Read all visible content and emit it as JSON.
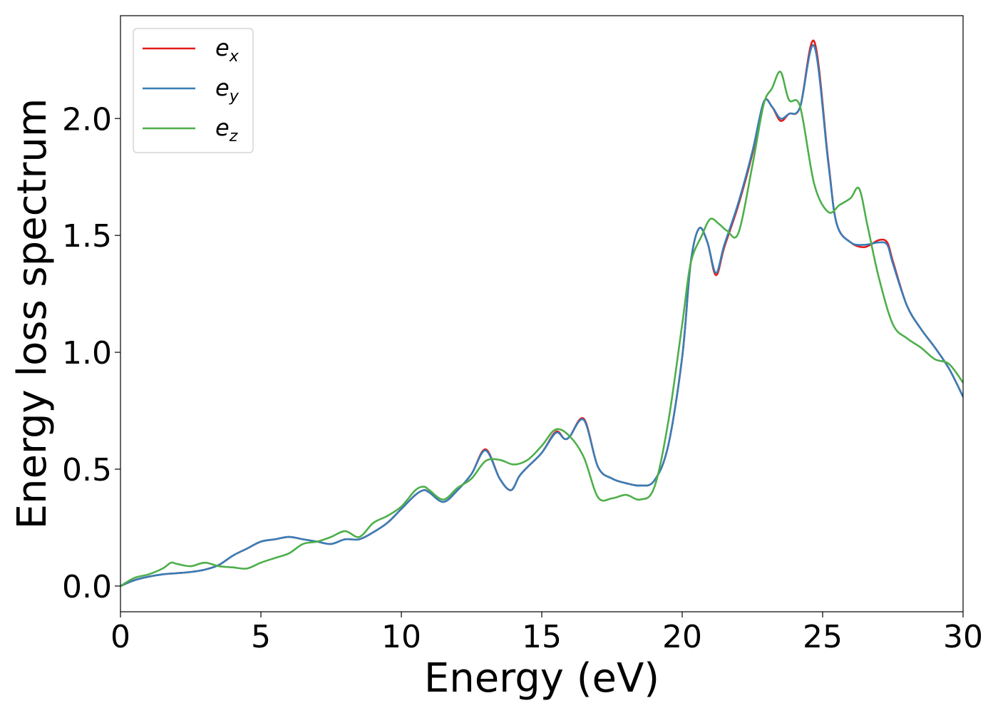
{
  "chart_data": {
    "type": "line",
    "xlabel": "Energy (eV)",
    "ylabel": "Energy loss spectrum",
    "xlim": [
      0,
      30
    ],
    "ylim": [
      -0.11,
      2.44
    ],
    "xticks": [
      0,
      5,
      10,
      15,
      20,
      25,
      30
    ],
    "xtick_labels": [
      "0",
      "5",
      "10",
      "15",
      "20",
      "25",
      "30"
    ],
    "yticks": [
      0.0,
      0.5,
      1.0,
      1.5,
      2.0
    ],
    "ytick_labels": [
      "0.0",
      "0.5",
      "1.0",
      "1.5",
      "2.0"
    ],
    "grid": false,
    "legend_position": "top-left",
    "series": [
      {
        "name": "e_x",
        "legend_base": "e",
        "legend_sub": "x",
        "color": "#e41a1c",
        "x": [
          0,
          0.5,
          1,
          1.5,
          2,
          2.5,
          3,
          3.5,
          4,
          4.5,
          5,
          5.5,
          6,
          6.5,
          7,
          7.5,
          8,
          8.5,
          9,
          9.5,
          10,
          10.5,
          10.8,
          11,
          11.5,
          12,
          12.5,
          13,
          13.5,
          13.9,
          14.2,
          14.5,
          15,
          15.5,
          15.8,
          16,
          16.5,
          17,
          17.5,
          18,
          18.5,
          19,
          19.5,
          20,
          20.3,
          20.6,
          20.9,
          21.2,
          21.5,
          22,
          22.5,
          22.9,
          23.2,
          23.5,
          23.8,
          24.2,
          24.7,
          25.2,
          25.5,
          26,
          26.5,
          27,
          27.3,
          27.5,
          28,
          28.5,
          29,
          29.5,
          30
        ],
        "y": [
          0.0,
          0.025,
          0.04,
          0.05,
          0.055,
          0.06,
          0.07,
          0.09,
          0.13,
          0.16,
          0.19,
          0.2,
          0.21,
          0.2,
          0.19,
          0.18,
          0.2,
          0.2,
          0.23,
          0.27,
          0.33,
          0.39,
          0.41,
          0.4,
          0.36,
          0.41,
          0.48,
          0.585,
          0.46,
          0.41,
          0.47,
          0.51,
          0.57,
          0.66,
          0.63,
          0.64,
          0.715,
          0.51,
          0.46,
          0.44,
          0.43,
          0.45,
          0.6,
          0.98,
          1.38,
          1.53,
          1.47,
          1.33,
          1.45,
          1.63,
          1.85,
          2.07,
          2.05,
          1.99,
          2.02,
          2.05,
          2.33,
          1.82,
          1.55,
          1.47,
          1.45,
          1.48,
          1.47,
          1.39,
          1.2,
          1.1,
          1.02,
          0.93,
          0.81
        ]
      },
      {
        "name": "e_y",
        "legend_base": "e",
        "legend_sub": "y",
        "color": "#377eb8",
        "x": [
          0,
          0.5,
          1,
          1.5,
          2,
          2.5,
          3,
          3.5,
          4,
          4.5,
          5,
          5.5,
          6,
          6.5,
          7,
          7.5,
          8,
          8.5,
          9,
          9.5,
          10,
          10.5,
          10.8,
          11,
          11.5,
          12,
          12.5,
          13,
          13.5,
          13.9,
          14.2,
          14.5,
          15,
          15.5,
          15.8,
          16,
          16.5,
          17,
          17.5,
          18,
          18.5,
          19,
          19.5,
          20,
          20.3,
          20.6,
          20.9,
          21.2,
          21.5,
          22,
          22.5,
          22.9,
          23.2,
          23.5,
          23.8,
          24.2,
          24.7,
          25.2,
          25.5,
          26,
          26.5,
          27,
          27.3,
          27.5,
          28,
          28.5,
          29,
          29.5,
          30
        ],
        "y": [
          0.0,
          0.025,
          0.04,
          0.05,
          0.055,
          0.06,
          0.07,
          0.09,
          0.13,
          0.16,
          0.19,
          0.2,
          0.21,
          0.2,
          0.19,
          0.18,
          0.2,
          0.2,
          0.23,
          0.27,
          0.33,
          0.39,
          0.41,
          0.4,
          0.36,
          0.41,
          0.48,
          0.58,
          0.46,
          0.41,
          0.47,
          0.51,
          0.57,
          0.655,
          0.63,
          0.64,
          0.71,
          0.51,
          0.46,
          0.44,
          0.43,
          0.45,
          0.6,
          0.98,
          1.38,
          1.53,
          1.47,
          1.34,
          1.46,
          1.64,
          1.86,
          2.07,
          2.05,
          2.0,
          2.02,
          2.05,
          2.31,
          1.81,
          1.55,
          1.47,
          1.46,
          1.47,
          1.46,
          1.38,
          1.2,
          1.1,
          1.02,
          0.93,
          0.81
        ]
      },
      {
        "name": "e_z",
        "legend_base": "e",
        "legend_sub": "z",
        "color": "#4daf4a",
        "x": [
          0,
          0.5,
          1,
          1.5,
          1.8,
          2,
          2.5,
          3,
          3.5,
          4,
          4.5,
          5,
          5.5,
          6,
          6.5,
          7,
          7.5,
          8,
          8.5,
          9,
          9.5,
          10,
          10.5,
          10.8,
          11,
          11.5,
          12,
          12.5,
          13,
          13.5,
          14,
          14.5,
          15,
          15.5,
          16,
          16.5,
          17,
          17.5,
          18,
          18.5,
          19,
          19.5,
          20,
          20.3,
          20.7,
          21,
          21.3,
          21.6,
          22,
          22.5,
          22.9,
          23.2,
          23.5,
          23.8,
          24.2,
          24.7,
          25.2,
          25.6,
          26,
          26.3,
          26.6,
          27,
          27.5,
          28,
          28.5,
          29,
          29.5,
          30
        ],
        "y": [
          0.0,
          0.035,
          0.05,
          0.075,
          0.1,
          0.095,
          0.085,
          0.1,
          0.085,
          0.08,
          0.075,
          0.1,
          0.12,
          0.14,
          0.18,
          0.19,
          0.21,
          0.235,
          0.21,
          0.27,
          0.3,
          0.34,
          0.41,
          0.425,
          0.41,
          0.37,
          0.42,
          0.46,
          0.535,
          0.54,
          0.52,
          0.54,
          0.6,
          0.67,
          0.64,
          0.55,
          0.38,
          0.375,
          0.39,
          0.37,
          0.42,
          0.7,
          1.12,
          1.38,
          1.5,
          1.57,
          1.55,
          1.52,
          1.51,
          1.8,
          2.06,
          2.13,
          2.2,
          2.08,
          2.05,
          1.72,
          1.6,
          1.63,
          1.66,
          1.7,
          1.54,
          1.32,
          1.12,
          1.06,
          1.02,
          0.97,
          0.95,
          0.87
        ]
      }
    ]
  }
}
